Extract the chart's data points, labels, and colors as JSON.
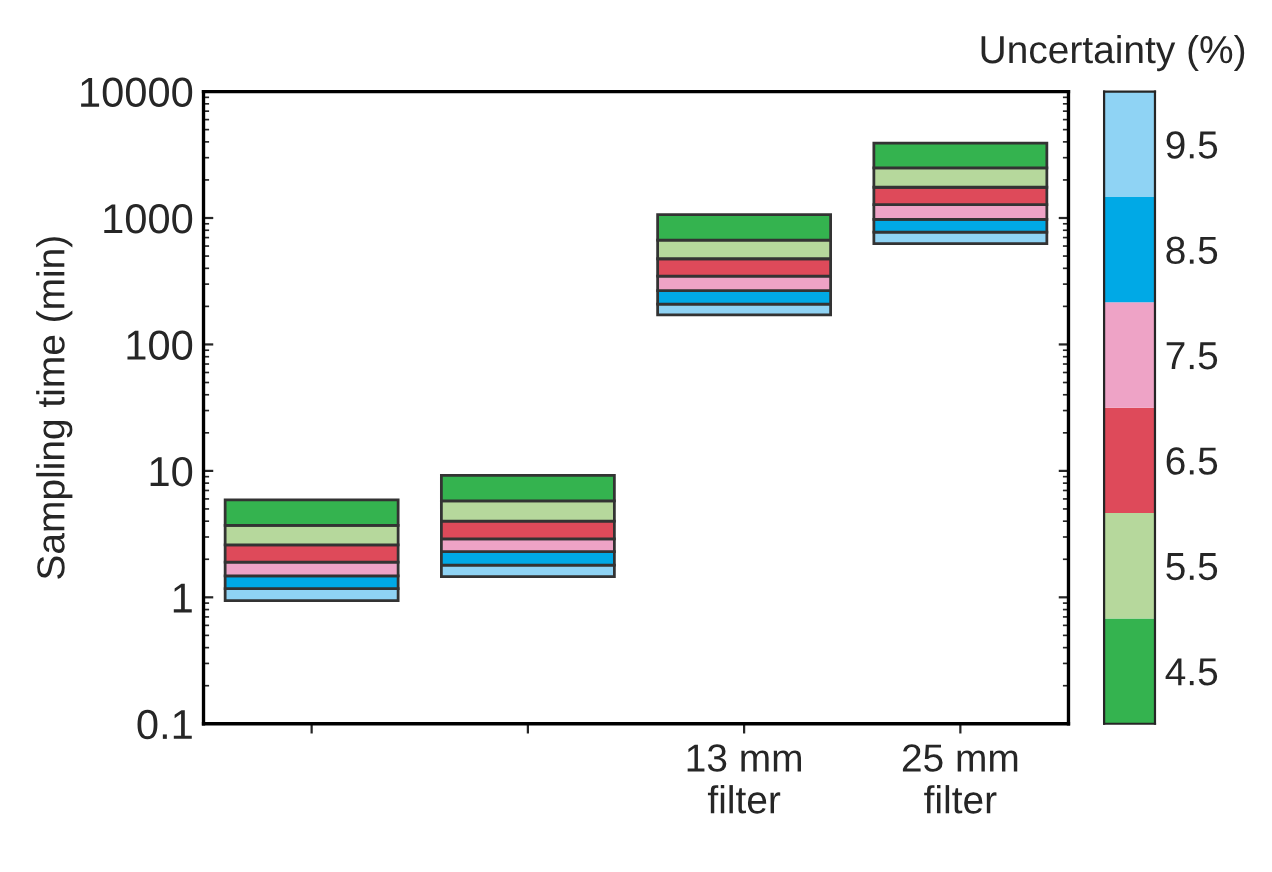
{
  "chart_data": {
    "type": "bar",
    "ylabel": "Sampling time (min)",
    "clabel": "Uncertainty (%)",
    "categories": [
      null,
      null,
      "13 mm filter",
      "25 mm filter"
    ],
    "series": [
      {
        "color": "#8fd3f4",
        "base": [
          0.94,
          1.46,
          171,
          628
        ],
        "values": [
          0.23,
          0.34,
          37,
          146
        ]
      },
      {
        "color": "#00a9e6",
        "base": [
          1.17,
          1.8,
          208,
          774
        ],
        "values": [
          0.31,
          0.5,
          58,
          201
        ]
      },
      {
        "color": "#eea3c6",
        "base": [
          1.48,
          2.3,
          266,
          975
        ],
        "values": [
          0.42,
          0.6,
          81,
          302
        ]
      },
      {
        "color": "#de4a5a",
        "base": [
          1.9,
          2.9,
          347,
          1277
        ],
        "values": [
          0.7,
          1.1,
          129,
          474
        ]
      },
      {
        "color": "#b6d89c",
        "base": [
          2.6,
          4.0,
          476,
          1751
        ],
        "values": [
          1.1,
          1.8,
          192,
          744
        ]
      },
      {
        "color": "#34b34f",
        "base": [
          3.7,
          5.8,
          668,
          2495
        ],
        "values": [
          2.2,
          3.4,
          396,
          1411
        ]
      }
    ],
    "log": "y",
    "ylim": [
      0.1,
      10000
    ],
    "yticks": [
      0.1,
      1,
      10,
      100,
      1000,
      10000
    ],
    "clim": [
      10,
      4
    ],
    "cticks": [
      4.5,
      5.5,
      6.5,
      7.5,
      8.5,
      9.5
    ],
    "grid": false
  }
}
